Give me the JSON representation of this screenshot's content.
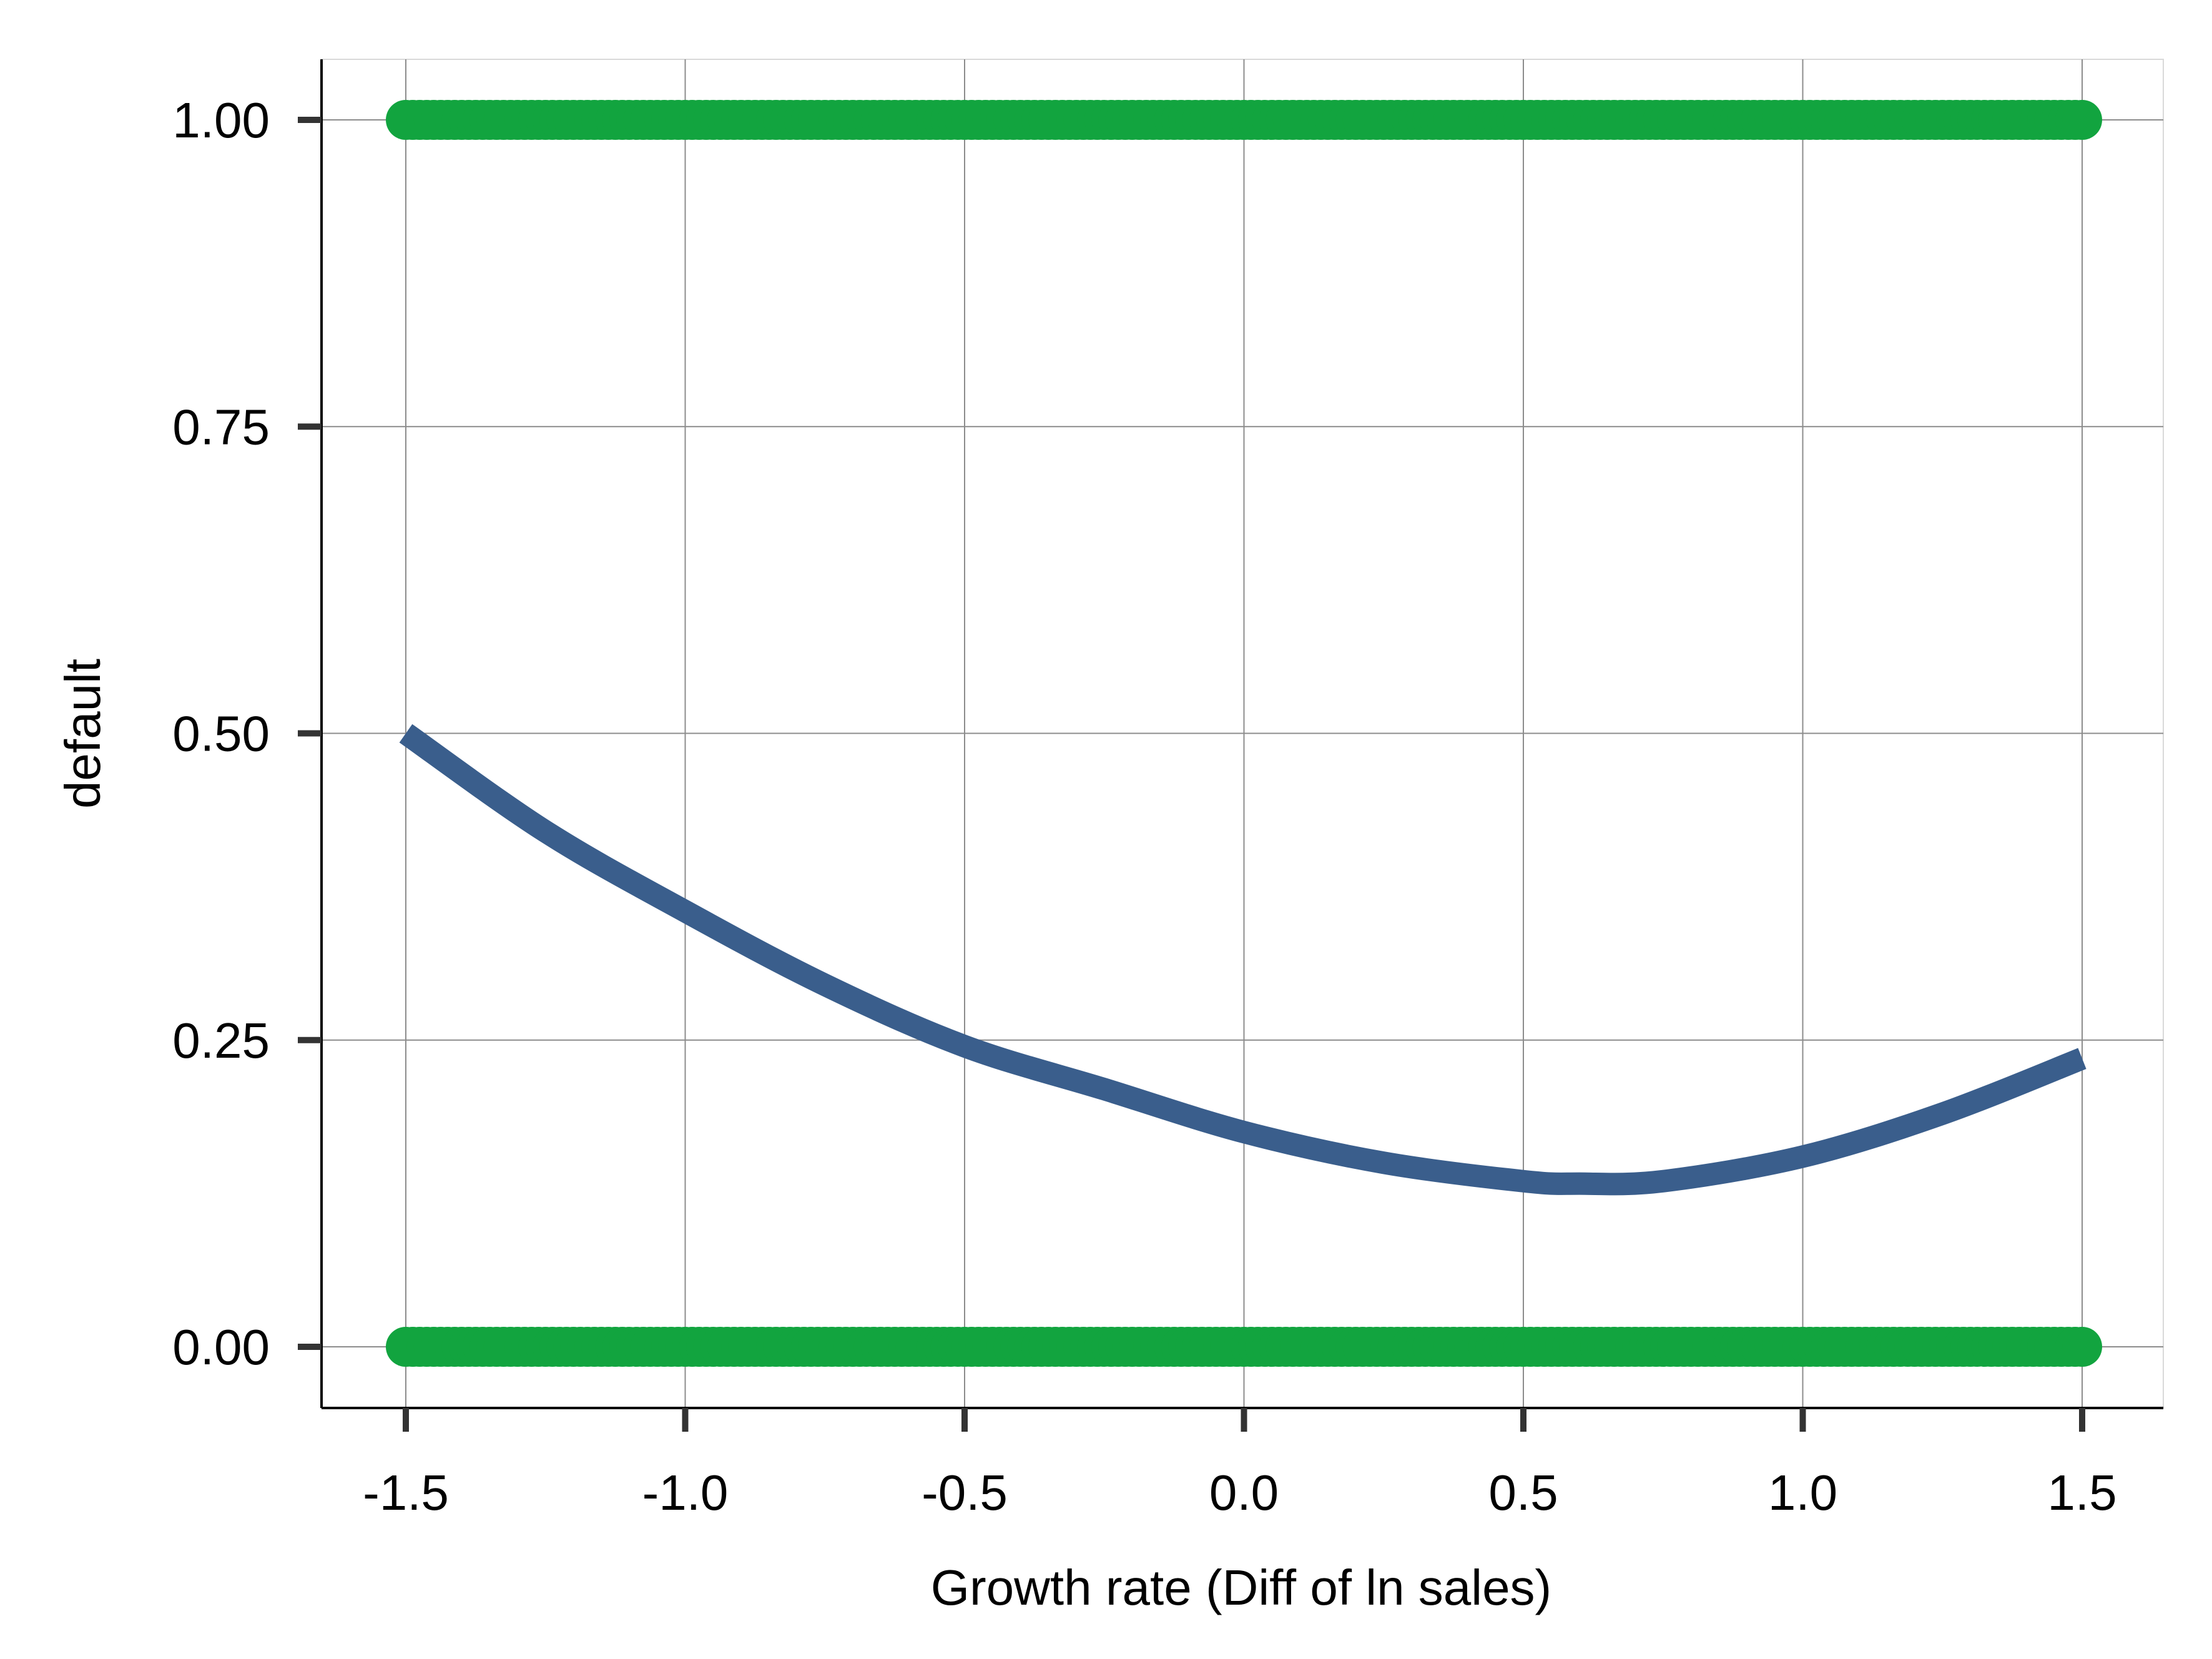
{
  "chart_data": {
    "type": "scatter",
    "title": "",
    "xlabel": "Growth rate (Diff of ln sales)",
    "ylabel": "default",
    "xlim": [
      -1.65,
      1.65
    ],
    "ylim": [
      -0.05,
      1.05
    ],
    "x_ticks": [
      -1.5,
      -1.0,
      -0.5,
      0.0,
      0.5,
      1.0,
      1.5
    ],
    "x_tick_labels": [
      "-1.5",
      "-1.0",
      "-0.5",
      "0.0",
      "0.5",
      "1.0",
      "1.5"
    ],
    "y_ticks": [
      0.0,
      0.25,
      0.5,
      0.75,
      1.0
    ],
    "y_tick_labels": [
      "0.00",
      "0.25",
      "0.50",
      "0.75",
      "1.00"
    ],
    "grid": true,
    "legend": "none",
    "series": [
      {
        "kind": "points",
        "color": "#12a43f",
        "y": 1.0,
        "x_range": [
          -1.5,
          1.5
        ]
      },
      {
        "kind": "points",
        "color": "#12a43f",
        "y": 0.0,
        "x_range": [
          -1.5,
          1.5
        ]
      },
      {
        "kind": "line",
        "color": "#3a5e8c",
        "x": [
          -1.5,
          -1.25,
          -1.0,
          -0.75,
          -0.5,
          -0.25,
          0.0,
          0.25,
          0.5,
          0.6,
          0.75,
          1.0,
          1.25,
          1.5
        ],
        "y": [
          0.5,
          0.42,
          0.355,
          0.295,
          0.245,
          0.21,
          0.175,
          0.15,
          0.135,
          0.133,
          0.135,
          0.155,
          0.19,
          0.235
        ]
      }
    ]
  }
}
